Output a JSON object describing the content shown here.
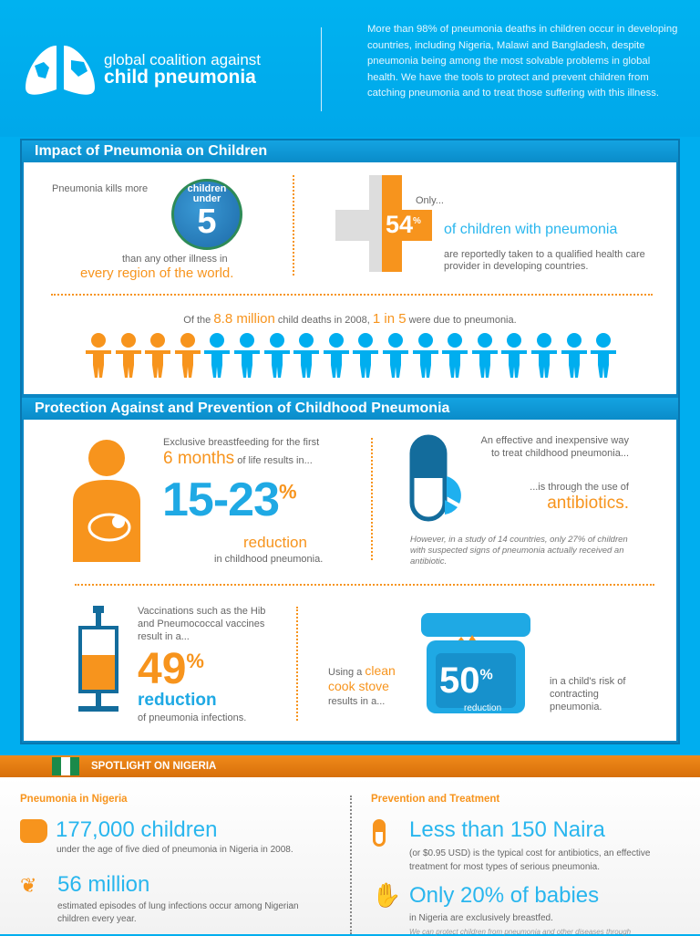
{
  "header": {
    "logo_line1": "global coalition against",
    "logo_line2": "child pneumonia",
    "intro": "More than 98% of pneumonia deaths in children occur in developing countries, including Nigeria, Malawi and Bangladesh, despite pneumonia being among the most solvable problems in global health. We have the tools to protect and prevent children from catching pneumonia and to treat those suffering with this illness."
  },
  "impact": {
    "title": "Impact of Pneumonia on Children",
    "kills_more": "Pneumonia kills more",
    "globe_line1": "children",
    "globe_line2": "under",
    "globe_num": "5",
    "than_any": "than any other illness in",
    "every_region": "every region of the world.",
    "only": "Only...",
    "pct": "54",
    "pct_sign": "%",
    "of_children": "of children with pneumonia",
    "taken_to": "are reportedly taken to a qualified health care provider in developing countries.",
    "deaths_pre": "Of the ",
    "deaths_num": "8.8 million",
    "deaths_mid": " child deaths in 2008, ",
    "ratio": "1 in 5",
    "deaths_post": " were due to pneumonia.",
    "kids_orange": 4,
    "kids_total": 18
  },
  "protection": {
    "title": "Protection Against and Prevention of Childhood Pneumonia",
    "bf_line1": "Exclusive breastfeeding for the first",
    "bf_months": "6 months",
    "bf_line2": " of life results in...",
    "bf_range": "15-23",
    "bf_pct": "%",
    "bf_reduction": "reduction",
    "bf_in": "in childhood pneumonia.",
    "ab_line1": "An effective and inexpensive way",
    "ab_line2": "to treat childhood pneumonia...",
    "ab_through": "...is through the use of",
    "ab_word": "antibiotics.",
    "ab_note": "However, in a study of 14 countries, only 27% of children with suspected signs of pneumonia actually received an antibiotic.",
    "vac_text": "Vaccinations such as the Hib and Pneumococcal vaccines result in a...",
    "vac_num": "49",
    "vac_pct": "%",
    "vac_reduction": "reduction",
    "vac_of": "of pneumonia infections.",
    "stove_using": "Using a ",
    "stove_clean": "clean",
    "stove_cook": "cook stove",
    "stove_results": "results in a...",
    "stove_num": "50",
    "stove_pct": "%",
    "stove_reduction": "reduction",
    "stove_risk": "in a child's risk of contracting pneumonia."
  },
  "nigeria": {
    "banner": "SPOTLIGHT ON NIGERIA",
    "left_title": "Pneumonia in Nigeria",
    "stat1": "177,000 children",
    "stat1_desc": "under the age of five died of pneumonia in Nigeria in 2008.",
    "stat2": "56 million",
    "stat2_desc": "estimated episodes of lung infections occur among Nigerian children every year.",
    "right_title": "Prevention and Treatment",
    "stat3": "Less than 150 Naira",
    "stat3_desc": "(or $0.95 USD) is the typical cost for antibiotics, an effective treatment for most types of serious pneumonia.",
    "stat4": "Only 20% of babies",
    "stat4_desc": "in Nigeria are exclusively breastfed.",
    "stat4_note": "We can protect children from pneumonia and other diseases through"
  },
  "colors": {
    "blue": "#00aeef",
    "orange": "#f7941d",
    "dark_blue": "#0a86c4"
  }
}
